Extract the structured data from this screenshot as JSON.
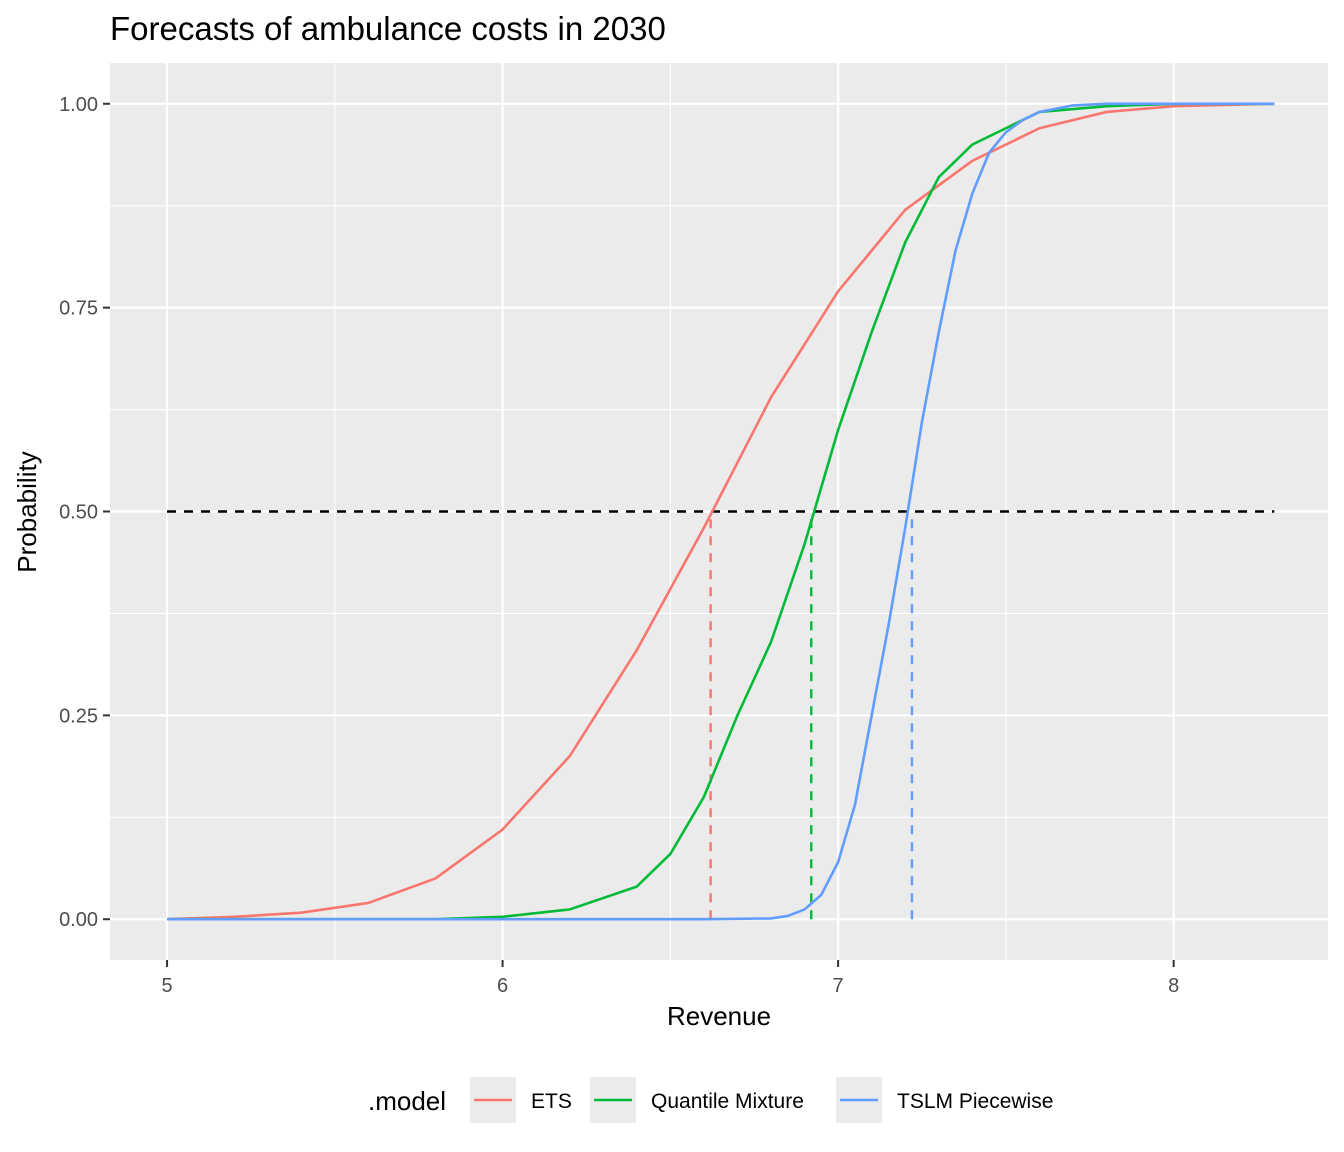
{
  "chart_data": {
    "type": "line",
    "title": "Forecasts of ambulance costs in 2030",
    "xlabel": "Revenue",
    "ylabel": "Probability",
    "xlim": [
      4.83,
      8.46
    ],
    "ylim": [
      -0.05,
      1.05
    ],
    "x_ticks": [
      "5",
      "6",
      "7",
      "8"
    ],
    "y_ticks": [
      "0.00",
      "0.25",
      "0.50",
      "0.75",
      "1.00"
    ],
    "grid": true,
    "legend": {
      "title": ".model",
      "position": "bottom"
    },
    "reference_lines": {
      "horizontal": {
        "y": 0.5,
        "x_from": 5,
        "x_to": 8.3,
        "color": "#000000",
        "style": "dashed"
      },
      "vertical": [
        {
          "series": "ETS",
          "x": 6.62
        },
        {
          "series": "Quantile Mixture",
          "x": 6.92
        },
        {
          "series": "TSLM Piecewise",
          "x": 7.22
        }
      ]
    },
    "series": [
      {
        "name": "ETS",
        "color": "#F8766D",
        "x": [
          5.0,
          5.2,
          5.4,
          5.6,
          5.8,
          6.0,
          6.2,
          6.4,
          6.6,
          6.8,
          7.0,
          7.2,
          7.4,
          7.6,
          7.8,
          8.0,
          8.3
        ],
        "y": [
          0.0,
          0.003,
          0.008,
          0.02,
          0.05,
          0.11,
          0.2,
          0.33,
          0.48,
          0.64,
          0.77,
          0.87,
          0.93,
          0.97,
          0.99,
          0.997,
          1.0
        ]
      },
      {
        "name": "Quantile Mixture",
        "color": "#00BA38",
        "x": [
          5.0,
          5.5,
          5.8,
          6.0,
          6.2,
          6.4,
          6.5,
          6.6,
          6.7,
          6.8,
          6.9,
          7.0,
          7.1,
          7.2,
          7.3,
          7.4,
          7.5,
          7.6,
          7.8,
          8.0,
          8.3
        ],
        "y": [
          0.0,
          0.0,
          0.0,
          0.003,
          0.012,
          0.04,
          0.08,
          0.15,
          0.25,
          0.34,
          0.46,
          0.6,
          0.72,
          0.83,
          0.91,
          0.95,
          0.97,
          0.99,
          0.997,
          1.0,
          1.0
        ]
      },
      {
        "name": "TSLM Piecewise",
        "color": "#619CFF",
        "x": [
          5.0,
          6.0,
          6.6,
          6.8,
          6.85,
          6.9,
          6.95,
          7.0,
          7.05,
          7.1,
          7.15,
          7.2,
          7.25,
          7.3,
          7.35,
          7.4,
          7.45,
          7.5,
          7.55,
          7.6,
          7.7,
          7.8,
          8.3
        ],
        "y": [
          0.0,
          0.0,
          0.0,
          0.001,
          0.004,
          0.012,
          0.03,
          0.07,
          0.14,
          0.25,
          0.36,
          0.48,
          0.61,
          0.72,
          0.82,
          0.89,
          0.94,
          0.965,
          0.98,
          0.99,
          0.998,
          1.0,
          1.0
        ]
      }
    ]
  }
}
